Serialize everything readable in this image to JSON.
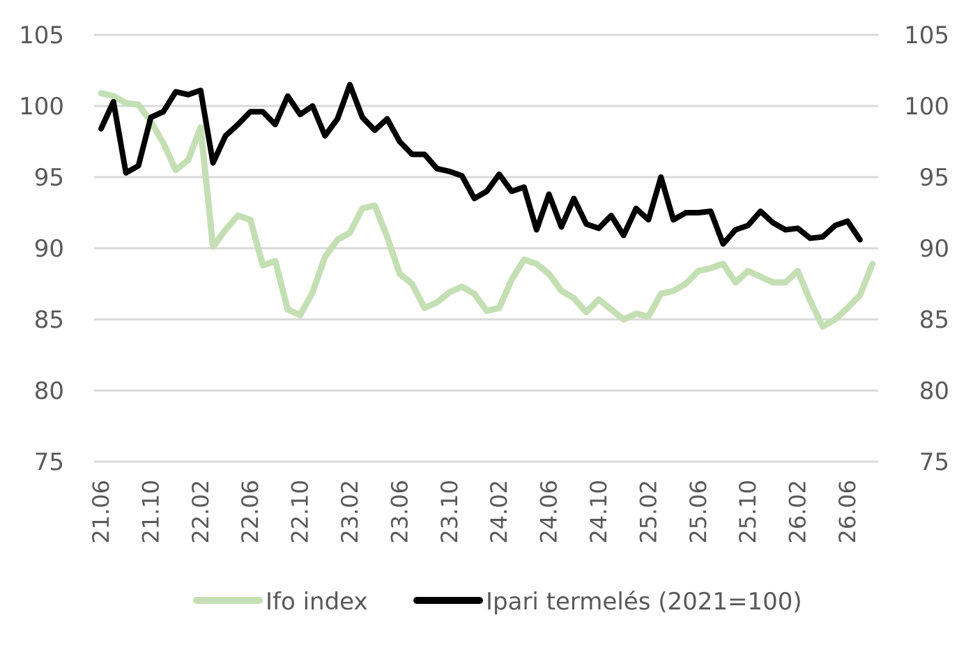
{
  "chart_data": {
    "type": "line",
    "title": "",
    "xlabel": "",
    "ylabel": "",
    "ylim": [
      75,
      105
    ],
    "y_ticks": [
      75,
      80,
      85,
      90,
      95,
      100,
      105
    ],
    "y_tick_labels_left": [
      "75",
      "80",
      "85",
      "90",
      "95",
      "100",
      "105"
    ],
    "y_tick_labels_right": [
      "75",
      "80",
      "85",
      "90",
      "95",
      "100",
      "105"
    ],
    "x_start": "2021-06",
    "x_tick_labels": [
      "21.06",
      "21.10",
      "22.02",
      "22.06",
      "22.10",
      "23.02",
      "23.06",
      "23.10",
      "24.02",
      "24.06",
      "24.10",
      "25.02",
      "25.06",
      "25.10",
      "26.02",
      "26.06"
    ],
    "grid": true,
    "legend": "bottom",
    "series": [
      {
        "name": "Ifo index",
        "color": "#c5dfb5",
        "values": [
          100.9,
          100.7,
          100.2,
          100.1,
          98.9,
          97.4,
          95.5,
          96.2,
          98.5,
          90.1,
          91.3,
          92.3,
          92.0,
          88.8,
          89.1,
          85.7,
          85.3,
          86.9,
          89.4,
          90.6,
          91.1,
          92.8,
          93.0,
          90.8,
          88.2,
          87.5,
          85.8,
          86.2,
          86.9,
          87.3,
          86.8,
          85.6,
          85.8,
          87.8,
          89.2,
          88.9,
          88.2,
          87.0,
          86.5,
          85.5,
          86.4,
          85.7,
          85.0,
          85.4,
          85.2,
          86.8,
          87.0,
          87.5,
          88.4,
          88.6,
          88.9,
          87.6,
          88.4,
          88.0,
          87.6,
          87.6,
          88.4,
          86.3,
          84.5,
          85.0,
          85.8,
          86.7,
          88.9
        ]
      },
      {
        "name": "Ipari termelés (2021=100)",
        "color": "#000000",
        "values": [
          98.4,
          100.3,
          95.3,
          95.8,
          99.2,
          99.6,
          101.0,
          100.8,
          101.1,
          96.0,
          97.9,
          98.7,
          99.6,
          99.6,
          98.7,
          100.7,
          99.4,
          100.0,
          97.9,
          99.1,
          101.5,
          99.2,
          98.3,
          99.1,
          97.5,
          96.6,
          96.6,
          95.6,
          95.4,
          95.1,
          93.5,
          94.0,
          95.2,
          94.0,
          94.3,
          91.3,
          93.8,
          91.5,
          93.5,
          91.7,
          91.4,
          92.3,
          90.9,
          92.8,
          92.0,
          95.0,
          92.0,
          92.5,
          92.5,
          92.6,
          90.3,
          91.3,
          91.6,
          92.6,
          91.8,
          91.3,
          91.4,
          90.7,
          90.8,
          91.6,
          91.9,
          90.6
        ]
      }
    ]
  }
}
